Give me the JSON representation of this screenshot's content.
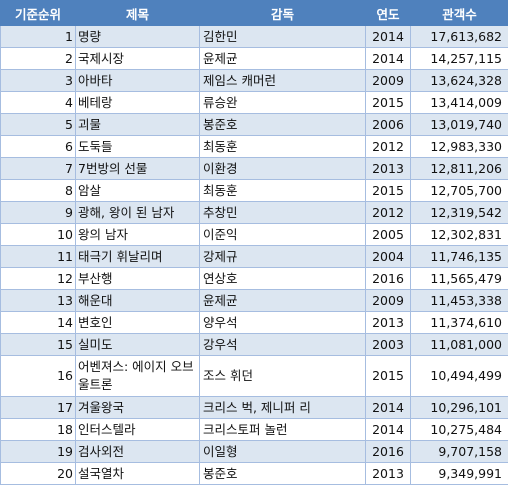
{
  "headers": {
    "rank": "기준순위",
    "title": "제목",
    "director": "감독",
    "year": "연도",
    "audience": "관객수"
  },
  "rows": [
    {
      "rank": "1",
      "title": "명량",
      "director": "김한민",
      "year": "2014",
      "audience": "17,613,682"
    },
    {
      "rank": "2",
      "title": "국제시장",
      "director": "윤제균",
      "year": "2014",
      "audience": "14,257,115"
    },
    {
      "rank": "3",
      "title": "아바타",
      "director": "제임스 캐머런",
      "year": "2009",
      "audience": "13,624,328"
    },
    {
      "rank": "4",
      "title": "베테랑",
      "director": "류승완",
      "year": "2015",
      "audience": "13,414,009"
    },
    {
      "rank": "5",
      "title": "괴물",
      "director": "봉준호",
      "year": "2006",
      "audience": "13,019,740"
    },
    {
      "rank": "6",
      "title": "도둑들",
      "director": "최동훈",
      "year": "2012",
      "audience": "12,983,330"
    },
    {
      "rank": "7",
      "title": "7번방의 선물",
      "director": "이환경",
      "year": "2013",
      "audience": "12,811,206"
    },
    {
      "rank": "8",
      "title": "암살",
      "director": "최동훈",
      "year": "2015",
      "audience": "12,705,700"
    },
    {
      "rank": "9",
      "title": "광해, 왕이 된 남자",
      "director": "추창민",
      "year": "2012",
      "audience": "12,319,542"
    },
    {
      "rank": "10",
      "title": "왕의 남자",
      "director": "이준익",
      "year": "2005",
      "audience": "12,302,831"
    },
    {
      "rank": "11",
      "title": "태극기 휘날리며",
      "director": "강제규",
      "year": "2004",
      "audience": "11,746,135"
    },
    {
      "rank": "12",
      "title": "부산행",
      "director": "연상호",
      "year": "2016",
      "audience": "11,565,479"
    },
    {
      "rank": "13",
      "title": "해운대",
      "director": "윤제균",
      "year": "2009",
      "audience": "11,453,338"
    },
    {
      "rank": "14",
      "title": "변호인",
      "director": "양우석",
      "year": "2013",
      "audience": "11,374,610"
    },
    {
      "rank": "15",
      "title": "실미도",
      "director": "강우석",
      "year": "2003",
      "audience": "11,081,000"
    },
    {
      "rank": "16",
      "title": "어벤져스: 에이지 오브 울트론",
      "director": "조스 휘던",
      "year": "2015",
      "audience": "10,494,499"
    },
    {
      "rank": "17",
      "title": "겨울왕국",
      "director": "크리스 벅, 제니퍼 리",
      "year": "2014",
      "audience": "10,296,101"
    },
    {
      "rank": "18",
      "title": "인터스텔라",
      "director": "크리스토퍼 놀런",
      "year": "2014",
      "audience": "10,275,484"
    },
    {
      "rank": "19",
      "title": "검사외전",
      "director": "이일형",
      "year": "2016",
      "audience": "9,707,158"
    },
    {
      "rank": "20",
      "title": "설국열차",
      "director": "봉준호",
      "year": "2013",
      "audience": "9,349,991"
    }
  ]
}
